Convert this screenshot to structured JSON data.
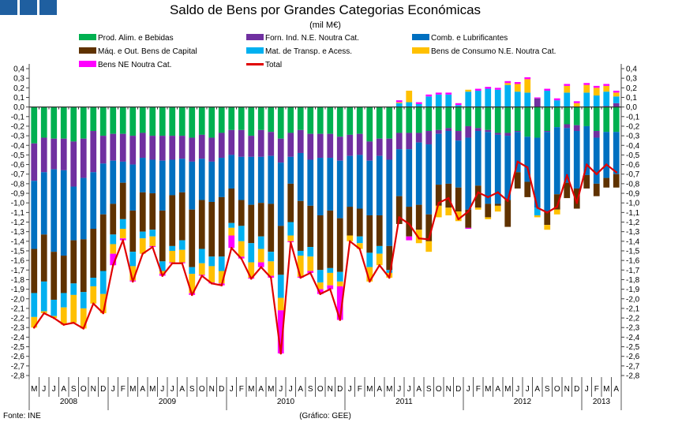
{
  "chart_data": {
    "type": "bar",
    "stacked": true,
    "title": "Saldo de Bens por Grandes Categorias Económicas",
    "subtitle": "(mil M€)",
    "source": "Fonte: INE",
    "credit": "(Gráfico: GEE)",
    "ylim": [
      -2.8,
      0.4
    ],
    "ystep": 0.1,
    "yticks": [
      "0,4",
      "0,3",
      "0,2",
      "0,1",
      "0,0",
      "-0,1",
      "-0,2",
      "-0,3",
      "-0,4",
      "-0,5",
      "-0,6",
      "-0,7",
      "-0,8",
      "-0,9",
      "-1,0",
      "-1,1",
      "-1,2",
      "-1,3",
      "-1,4",
      "-1,5",
      "-1,6",
      "-1,7",
      "-1,8",
      "-1,9",
      "-2,0",
      "-2,1",
      "-2,2",
      "-2,3",
      "-2,4",
      "-2,5",
      "-2,6",
      "-2,7",
      "-2,8"
    ],
    "months": [
      "M",
      "J",
      "J",
      "A",
      "S",
      "O",
      "N",
      "D",
      "J",
      "F",
      "M",
      "A",
      "M",
      "J",
      "J",
      "A",
      "S",
      "O",
      "N",
      "D",
      "J",
      "F",
      "M",
      "A",
      "M",
      "J",
      "J",
      "A",
      "S",
      "O",
      "N",
      "D",
      "J",
      "F",
      "M",
      "A",
      "M",
      "J",
      "J",
      "A",
      "S",
      "O",
      "N",
      "D",
      "J",
      "F",
      "M",
      "A",
      "M",
      "J",
      "J",
      "A",
      "S",
      "O",
      "N",
      "D",
      "J",
      "F",
      "M",
      "A"
    ],
    "years": [
      {
        "label": "2008",
        "start": 0,
        "count": 8
      },
      {
        "label": "2009",
        "start": 8,
        "count": 12
      },
      {
        "label": "2010",
        "start": 20,
        "count": 12
      },
      {
        "label": "2011",
        "start": 32,
        "count": 12
      },
      {
        "label": "2012",
        "start": 44,
        "count": 12
      },
      {
        "label": "2013",
        "start": 56,
        "count": 4
      }
    ],
    "legend_placement": "top",
    "series": [
      {
        "name": "Prod. Alim. e Bebidas",
        "color": "#00b050",
        "kind": "bar",
        "values": [
          -0.38,
          -0.32,
          -0.33,
          -0.33,
          -0.36,
          -0.33,
          -0.25,
          -0.3,
          -0.28,
          -0.28,
          -0.3,
          -0.27,
          -0.3,
          -0.3,
          -0.3,
          -0.3,
          -0.32,
          -0.29,
          -0.32,
          -0.27,
          -0.24,
          -0.24,
          -0.3,
          -0.24,
          -0.26,
          -0.33,
          -0.27,
          -0.24,
          -0.28,
          -0.28,
          -0.28,
          -0.31,
          -0.29,
          -0.28,
          -0.36,
          -0.33,
          -0.33,
          -0.27,
          -0.27,
          -0.27,
          -0.25,
          -0.24,
          -0.22,
          -0.25,
          -0.2,
          -0.22,
          -0.24,
          -0.27,
          -0.27,
          -0.25,
          -0.31,
          -0.32,
          -0.25,
          -0.21,
          -0.18,
          -0.19,
          -0.2,
          -0.25,
          -0.26,
          -0.26
        ]
      },
      {
        "name": "Forn. Ind. N.E. Noutra Cat.",
        "color": "#7030a0",
        "kind": "bar",
        "values": [
          -0.39,
          -0.36,
          -0.32,
          -0.33,
          -0.47,
          -0.41,
          -0.43,
          -0.29,
          -0.28,
          -0.29,
          -0.3,
          -0.26,
          -0.25,
          -0.26,
          -0.25,
          -0.24,
          -0.25,
          -0.25,
          -0.25,
          -0.26,
          -0.26,
          -0.28,
          -0.22,
          -0.28,
          -0.25,
          -0.25,
          -0.25,
          -0.24,
          -0.27,
          -0.25,
          -0.25,
          -0.25,
          -0.22,
          -0.22,
          -0.2,
          -0.18,
          -0.22,
          -0.17,
          -0.17,
          -0.1,
          -0.14,
          -0.04,
          -0.03,
          -0.1,
          -0.12,
          -0.03,
          -0.02,
          -0.02,
          -0.03,
          -0.01,
          0,
          0.09,
          -0.01,
          0,
          -0.04,
          -0.06,
          0,
          -0.07,
          0.01,
          0.04
        ]
      },
      {
        "name": "Comb. e Lubrificantes",
        "color": "#0070c0",
        "kind": "bar",
        "values": [
          -0.71,
          -0.65,
          -0.86,
          -0.89,
          -0.56,
          -0.64,
          -0.59,
          -0.53,
          -0.45,
          -0.22,
          -0.48,
          -0.36,
          -0.35,
          -0.52,
          -0.37,
          -0.35,
          -0.5,
          -0.43,
          -0.42,
          -0.41,
          -0.35,
          -0.45,
          -0.5,
          -0.48,
          -0.5,
          -0.66,
          -0.28,
          -0.5,
          -0.48,
          -0.6,
          -0.55,
          -0.6,
          -0.53,
          -0.56,
          -0.57,
          -0.62,
          -0.9,
          -0.49,
          -0.6,
          -0.65,
          -0.73,
          -0.53,
          -0.55,
          -0.49,
          -0.75,
          -0.57,
          -0.75,
          -0.72,
          -0.67,
          -0.42,
          -0.47,
          -0.73,
          -0.83,
          -0.7,
          -0.57,
          -0.6,
          -0.51,
          -0.48,
          -0.48,
          -0.44
        ]
      },
      {
        "name": "Máq. e Out. Bens de Capital",
        "color": "#5f3200",
        "kind": "bar",
        "values": [
          -0.46,
          -0.49,
          -0.5,
          -0.39,
          -0.45,
          -0.55,
          -0.51,
          -0.59,
          -0.32,
          -0.38,
          -0.43,
          -0.41,
          -0.38,
          -0.53,
          -0.53,
          -0.5,
          -0.6,
          -0.51,
          -0.57,
          -0.62,
          -0.36,
          -0.27,
          -0.4,
          -0.35,
          -0.5,
          -0.51,
          -0.4,
          -0.52,
          -0.43,
          -0.57,
          -0.6,
          -0.56,
          -0.3,
          -0.29,
          -0.39,
          -0.32,
          -0.25,
          -0.29,
          -0.31,
          -0.26,
          -0.28,
          -0.22,
          -0.25,
          -0.25,
          -0.19,
          -0.23,
          -0.14,
          -0.02,
          -0.28,
          -0.17,
          -0.16,
          0,
          -0.14,
          -0.16,
          -0.16,
          -0.21,
          -0.14,
          -0.13,
          -0.1,
          -0.14
        ]
      },
      {
        "name": "Mat. de Transp. e Acess.",
        "color": "#00b0f0",
        "kind": "bar",
        "values": [
          -0.25,
          -0.31,
          -0.17,
          -0.15,
          -0.12,
          -0.17,
          -0.09,
          -0.24,
          -0.1,
          -0.1,
          -0.15,
          -0.07,
          -0.07,
          -0.1,
          -0.05,
          -0.1,
          -0.07,
          -0.15,
          -0.1,
          -0.15,
          -0.05,
          -0.16,
          -0.2,
          -0.13,
          -0.1,
          -0.24,
          -0.14,
          -0.05,
          -0.1,
          -0.13,
          -0.05,
          -0.1,
          0,
          -0.07,
          -0.15,
          -0.08,
          -0.03,
          0.04,
          0.05,
          0.03,
          0.11,
          0.13,
          0.13,
          0.02,
          0.16,
          0.17,
          0.19,
          0.18,
          0.23,
          0.16,
          0.15,
          -0.08,
          0.17,
          0.07,
          0.15,
          0,
          0.15,
          0.12,
          0.15,
          0.07
        ]
      },
      {
        "name": "Bens de Consumo N.E. Noutra Cat.",
        "color": "#ffc000",
        "kind": "bar",
        "values": [
          -0.11,
          -0.02,
          -0.02,
          -0.18,
          -0.29,
          -0.21,
          -0.18,
          -0.2,
          -0.1,
          -0.1,
          -0.15,
          -0.16,
          -0.1,
          -0.03,
          -0.12,
          -0.13,
          -0.2,
          -0.12,
          -0.17,
          -0.13,
          -0.08,
          -0.16,
          -0.16,
          -0.14,
          -0.15,
          -0.13,
          -0.06,
          -0.22,
          -0.15,
          -0.07,
          -0.13,
          -0.05,
          -0.06,
          -0.06,
          -0.15,
          -0.12,
          -0.05,
          0.01,
          0.12,
          -0.14,
          -0.11,
          -0.12,
          -0.08,
          -0.1,
          0.02,
          -0.02,
          -0.02,
          -0.06,
          0.02,
          0.08,
          0.14,
          -0.02,
          -0.05,
          -0.05,
          0.07,
          0.04,
          0.08,
          0.08,
          0.06,
          0.04
        ]
      },
      {
        "name": "Bens NE Noutra Cat.",
        "color": "#ff00ff",
        "kind": "bar",
        "values": [
          0,
          0,
          0,
          0,
          0,
          0,
          0,
          0,
          -0.12,
          -0.02,
          -0.01,
          0,
          -0.01,
          -0.02,
          -0.01,
          -0.01,
          -0.02,
          -0.01,
          -0.01,
          -0.02,
          -0.13,
          -0.02,
          -0.01,
          -0.05,
          -0.02,
          -0.45,
          -0.01,
          -0.01,
          -0.02,
          -0.05,
          -0.04,
          -0.35,
          0,
          0,
          0,
          0,
          0,
          0.02,
          -0.04,
          0.02,
          0.02,
          0.02,
          0.02,
          0.02,
          -0.01,
          0.02,
          0.02,
          0.02,
          0.02,
          0.02,
          0.02,
          0.01,
          0.02,
          0.02,
          0.02,
          0.02,
          0.02,
          0.02,
          0.02,
          0.02
        ]
      },
      {
        "name": "Total",
        "color": "#e00000",
        "kind": "line",
        "values": [
          -2.3,
          -2.15,
          -2.2,
          -2.27,
          -2.25,
          -2.31,
          -2.05,
          -2.15,
          -1.65,
          -1.39,
          -1.82,
          -1.53,
          -1.46,
          -1.76,
          -1.63,
          -1.63,
          -1.96,
          -1.76,
          -1.84,
          -1.86,
          -1.47,
          -1.58,
          -1.79,
          -1.67,
          -1.78,
          -2.57,
          -1.41,
          -1.78,
          -1.73,
          -1.95,
          -1.9,
          -2.22,
          -1.4,
          -1.48,
          -1.82,
          -1.65,
          -1.78,
          -1.15,
          -1.22,
          -1.37,
          -1.38,
          -1.0,
          -0.95,
          -1.17,
          -1.09,
          -0.89,
          -0.94,
          -0.89,
          -0.98,
          -0.57,
          -0.63,
          -1.05,
          -1.1,
          -1.04,
          -0.71,
          -1.0,
          -0.6,
          -0.7,
          -0.6,
          -0.68
        ]
      }
    ]
  }
}
